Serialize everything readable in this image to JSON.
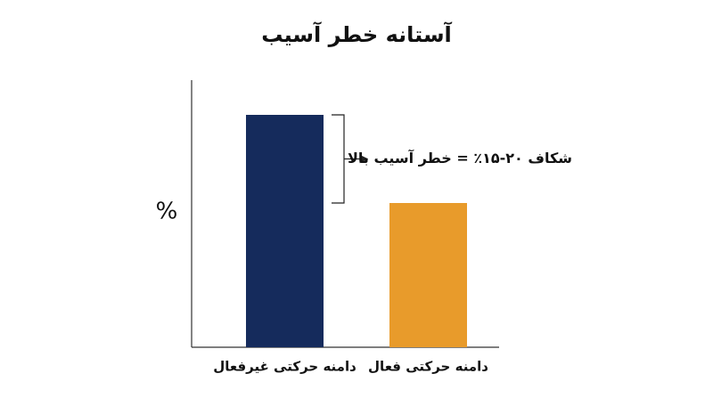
{
  "chart_data": {
    "type": "bar",
    "title": "آستانه خطر آسیب",
    "y_label": "%",
    "categories": [
      "دامنه حرکتی غیرفعال",
      "دامنه حرکتی فعال"
    ],
    "values": [
      87,
      54
    ],
    "colors": [
      "#152b5c",
      "#e89b2b"
    ],
    "ylim": [
      0,
      100
    ],
    "annotation": "شکاف ۲۰-۱۵٪ = خطر آسیب بالا"
  }
}
